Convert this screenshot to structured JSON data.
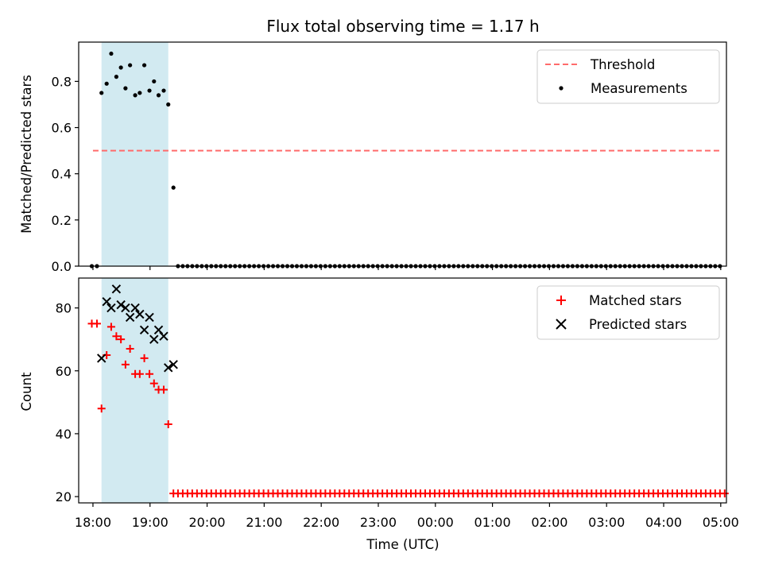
{
  "chart_data": [
    {
      "type": "scatter",
      "title": "Flux total observing time = 1.17 h",
      "xlabel": "",
      "ylabel": "Matched/Predicted stars",
      "xlim": [
        17.75,
        29.1
      ],
      "ylim": [
        0.0,
        0.97
      ],
      "yticks": [
        0.0,
        0.2,
        0.4,
        0.6,
        0.8
      ],
      "ytick_labels": [
        "0.0",
        "0.2",
        "0.4",
        "0.6",
        "0.8"
      ],
      "shaded_interval": {
        "x": [
          18.15,
          19.32
        ],
        "color": "#add8e6"
      },
      "legend": {
        "position": "top-right",
        "entries": [
          "Threshold",
          "Measurements"
        ]
      },
      "series": [
        {
          "name": "Threshold",
          "style": "dashed-line",
          "color": "#ff6b6b",
          "x": [
            18.0,
            29.0
          ],
          "y": [
            0.5,
            0.5
          ]
        },
        {
          "name": "Measurements",
          "style": "dot",
          "color": "#000000",
          "x": [
            17.98,
            18.07,
            18.15,
            18.24,
            18.32,
            18.41,
            18.49,
            18.57,
            18.65,
            18.74,
            18.82,
            18.9,
            18.99,
            19.07,
            19.15,
            19.24,
            19.32,
            19.41
          ],
          "y": [
            0.0,
            0.0,
            0.75,
            0.79,
            0.92,
            0.82,
            0.86,
            0.77,
            0.87,
            0.74,
            0.75,
            0.87,
            0.76,
            0.8,
            0.74,
            0.76,
            0.7,
            0.34
          ],
          "zero_run": {
            "start": 19.49,
            "step": 0.0833,
            "end": 29.0,
            "y": 0.0
          }
        }
      ]
    },
    {
      "type": "scatter",
      "title": "",
      "xlabel": "Time (UTC)",
      "ylabel": "Count",
      "xlim": [
        17.75,
        29.1
      ],
      "ylim": [
        18.0,
        89.5
      ],
      "yticks": [
        20,
        40,
        60,
        80
      ],
      "ytick_labels": [
        "20",
        "40",
        "60",
        "80"
      ],
      "xticks": [
        18,
        19,
        20,
        21,
        22,
        23,
        24,
        25,
        26,
        27,
        28,
        29
      ],
      "xtick_labels": [
        "18:00",
        "19:00",
        "20:00",
        "21:00",
        "22:00",
        "23:00",
        "00:00",
        "01:00",
        "02:00",
        "03:00",
        "04:00",
        "05:00"
      ],
      "shaded_interval": {
        "x": [
          18.15,
          19.32
        ],
        "color": "#add8e6"
      },
      "legend": {
        "position": "top-right",
        "entries": [
          "Matched stars",
          "Predicted stars"
        ]
      },
      "series": [
        {
          "name": "Matched stars",
          "marker": "+",
          "color": "#ff0000",
          "x": [
            17.98,
            18.07,
            18.15,
            18.24,
            18.32,
            18.41,
            18.49,
            18.57,
            18.65,
            18.74,
            18.82,
            18.9,
            18.99,
            19.07,
            19.15,
            19.24,
            19.32,
            19.41
          ],
          "y": [
            75,
            75,
            48,
            65,
            74,
            71,
            70,
            62,
            67,
            59,
            59,
            64,
            59,
            56,
            54,
            54,
            43,
            21
          ],
          "const_run": {
            "start": 19.49,
            "step": 0.0833,
            "end": 29.08,
            "y": 21
          }
        },
        {
          "name": "Predicted stars",
          "marker": "x",
          "color": "#000000",
          "x": [
            18.15,
            18.24,
            18.32,
            18.41,
            18.49,
            18.57,
            18.65,
            18.74,
            18.82,
            18.9,
            18.99,
            19.07,
            19.15,
            19.24,
            19.32,
            19.41
          ],
          "y": [
            64,
            82,
            80,
            86,
            81,
            80,
            77,
            80,
            78,
            73,
            77,
            70,
            73,
            71,
            61,
            62
          ]
        }
      ]
    }
  ]
}
